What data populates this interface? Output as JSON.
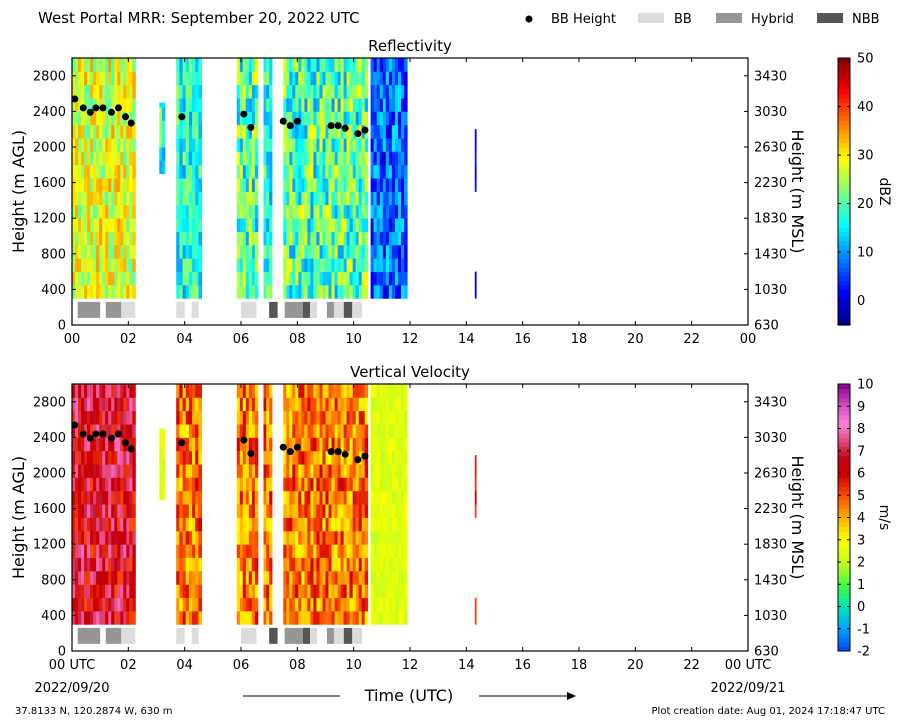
{
  "figure": {
    "title": "West Portal MRR:  September 20, 2022 UTC",
    "footer_left": "37.8133 N, 120.2874 W, 630 m",
    "footer_right": "Plot creation date: Aug 01, 2024 17:18:47 UTC",
    "xlabel": "Time (UTC)",
    "x_start_label": "00 UTC",
    "x_start_date": "2022/09/20",
    "x_end_label": "00 UTC",
    "x_end_date": "2022/09/21"
  },
  "legend": {
    "items": [
      {
        "label": "BB Height",
        "symbol": "dot",
        "color": "#000000"
      },
      {
        "label": "BB",
        "symbol": "box",
        "color": "#dcdcdc"
      },
      {
        "label": "Hybrid",
        "symbol": "box",
        "color": "#969696"
      },
      {
        "label": "NBB",
        "symbol": "box",
        "color": "#555555"
      }
    ]
  },
  "chart_data": [
    {
      "type": "heatmap",
      "title": "Reflectivity",
      "ylabel": "Height (m AGL)",
      "ylabel_right": "Height (m MSL)",
      "colorbar_label": "dBZ",
      "colorbar_ticks": [
        0,
        10,
        20,
        30,
        40,
        50
      ],
      "colorbar_range": [
        -5,
        50
      ],
      "colormap": "jet",
      "xlim": [
        0,
        24
      ],
      "x_ticks": [
        "00",
        "02",
        "04",
        "06",
        "08",
        "10",
        "12",
        "14",
        "16",
        "18",
        "20",
        "22",
        "00"
      ],
      "ylim": [
        0,
        3000
      ],
      "y_ticks": [
        0,
        400,
        800,
        1200,
        1600,
        2000,
        2400,
        2800
      ],
      "y_ticks_right": [
        630,
        1030,
        1430,
        1830,
        2230,
        2630,
        3030,
        3430
      ],
      "data_swaths": [
        {
          "t0": 0.0,
          "t1": 2.25,
          "h0": 300,
          "h1": 3000,
          "level": "20-35"
        },
        {
          "t0": 3.1,
          "t1": 3.3,
          "h0": 1700,
          "h1": 2500,
          "level": "10-25"
        },
        {
          "t0": 3.7,
          "t1": 4.6,
          "h0": 300,
          "h1": 3000,
          "level": "10-25"
        },
        {
          "t0": 5.85,
          "t1": 6.6,
          "h0": 300,
          "h1": 3000,
          "level": "10-30"
        },
        {
          "t0": 6.8,
          "t1": 7.1,
          "h0": 300,
          "h1": 3000,
          "level": "10-25"
        },
        {
          "t0": 7.5,
          "t1": 10.5,
          "h0": 300,
          "h1": 3000,
          "level": "10-30"
        },
        {
          "t0": 10.6,
          "t1": 11.9,
          "h0": 300,
          "h1": 3000,
          "level": "0-15"
        },
        {
          "t0": 14.3,
          "t1": 14.35,
          "h0": 1500,
          "h1": 2200,
          "level": "0-5"
        },
        {
          "t0": 14.3,
          "t1": 14.35,
          "h0": 300,
          "h1": 600,
          "level": "0-5"
        }
      ]
    },
    {
      "type": "heatmap",
      "title": "Vertical Velocity",
      "ylabel": "Height (m AGL)",
      "ylabel_right": "Height (m MSL)",
      "colorbar_label": "m/s",
      "colorbar_ticks": [
        -2,
        -1,
        0,
        1,
        2,
        3,
        4,
        5,
        6,
        7,
        8,
        9,
        10
      ],
      "colorbar_range": [
        -2,
        10
      ],
      "xlim": [
        0,
        24
      ],
      "x_ticks": [
        "00 UTC",
        "02",
        "04",
        "06",
        "08",
        "10",
        "12",
        "14",
        "16",
        "18",
        "20",
        "22",
        "00 UTC"
      ],
      "ylim": [
        0,
        3000
      ],
      "y_ticks": [
        0,
        400,
        800,
        1200,
        1600,
        2000,
        2400,
        2800
      ],
      "y_ticks_right": [
        630,
        1030,
        1430,
        1830,
        2230,
        2630,
        3030,
        3430
      ],
      "data_swaths": [
        {
          "t0": 0.0,
          "t1": 2.25,
          "h0": 300,
          "h1": 3000,
          "level": "5-8"
        },
        {
          "t0": 3.1,
          "t1": 3.3,
          "h0": 1700,
          "h1": 2500,
          "level": "2-3"
        },
        {
          "t0": 3.7,
          "t1": 4.6,
          "h0": 300,
          "h1": 3000,
          "level": "3-6"
        },
        {
          "t0": 5.85,
          "t1": 6.6,
          "h0": 300,
          "h1": 3000,
          "level": "3-6"
        },
        {
          "t0": 6.8,
          "t1": 7.1,
          "h0": 300,
          "h1": 3000,
          "level": "3-6"
        },
        {
          "t0": 7.5,
          "t1": 10.5,
          "h0": 300,
          "h1": 3000,
          "level": "3-6"
        },
        {
          "t0": 10.6,
          "t1": 11.9,
          "h0": 300,
          "h1": 3000,
          "level": "2-3"
        },
        {
          "t0": 14.3,
          "t1": 14.35,
          "h0": 1500,
          "h1": 2200,
          "level": "5-6"
        },
        {
          "t0": 14.3,
          "t1": 14.35,
          "h0": 300,
          "h1": 600,
          "level": "5-6"
        }
      ]
    }
  ],
  "bb_height": {
    "t": [
      0.1,
      0.4,
      0.65,
      0.85,
      1.1,
      1.4,
      1.65,
      1.9,
      2.1,
      3.9,
      6.1,
      6.35,
      7.5,
      7.75,
      8.0,
      9.2,
      9.45,
      9.7,
      10.15,
      10.4
    ],
    "h": [
      2540,
      2440,
      2390,
      2440,
      2440,
      2390,
      2440,
      2340,
      2270,
      2340,
      2370,
      2220,
      2290,
      2240,
      2290,
      2240,
      2240,
      2210,
      2150,
      2190
    ]
  },
  "bb_class_strip": [
    {
      "t0": 0.2,
      "t1": 1.0,
      "class": "Hybrid"
    },
    {
      "t0": 1.2,
      "t1": 1.75,
      "class": "Hybrid"
    },
    {
      "t0": 1.75,
      "t1": 2.25,
      "class": "BB"
    },
    {
      "t0": 3.7,
      "t1": 4.0,
      "class": "BB"
    },
    {
      "t0": 4.25,
      "t1": 4.5,
      "class": "BB"
    },
    {
      "t0": 6.0,
      "t1": 6.55,
      "class": "BB"
    },
    {
      "t0": 7.0,
      "t1": 7.3,
      "class": "NBB"
    },
    {
      "t0": 7.55,
      "t1": 8.2,
      "class": "Hybrid"
    },
    {
      "t0": 8.2,
      "t1": 8.45,
      "class": "NBB"
    },
    {
      "t0": 8.45,
      "t1": 8.7,
      "class": "BB"
    },
    {
      "t0": 9.05,
      "t1": 9.3,
      "class": "Hybrid"
    },
    {
      "t0": 9.3,
      "t1": 9.65,
      "class": "BB"
    },
    {
      "t0": 9.65,
      "t1": 9.95,
      "class": "NBB"
    },
    {
      "t0": 9.95,
      "t1": 10.3,
      "class": "BB"
    }
  ]
}
